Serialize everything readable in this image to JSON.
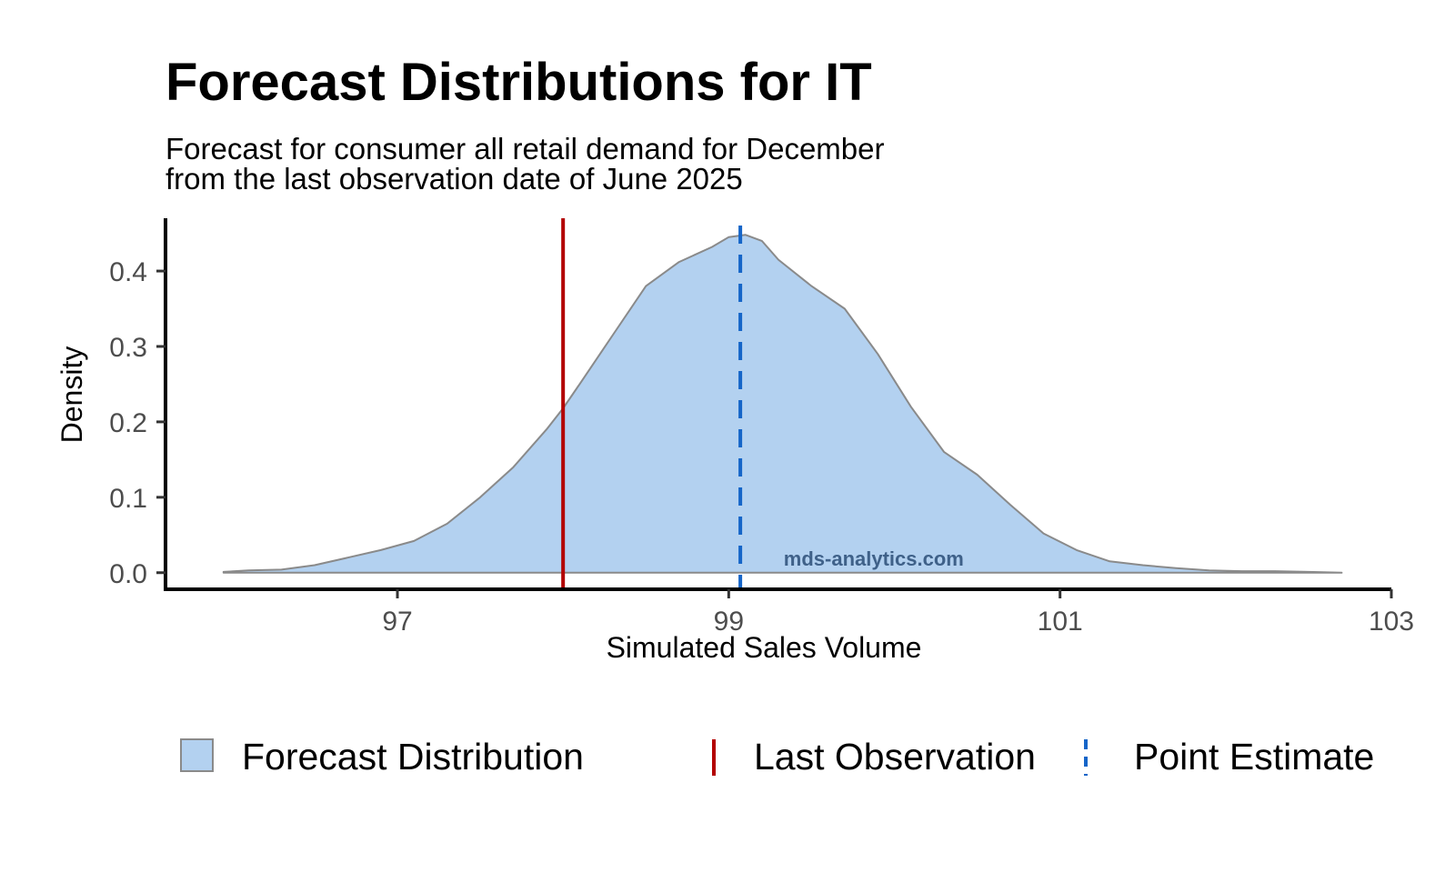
{
  "chart_data": {
    "type": "area",
    "title": "Forecast Distributions for IT",
    "subtitle": [
      "Forecast for consumer all retail demand for December",
      "from the last observation date of June 2025"
    ],
    "xlabel": "Simulated Sales Volume",
    "ylabel": "Density",
    "xlim": [
      95.6,
      103.0
    ],
    "ylim": [
      -0.022,
      0.47
    ],
    "x_ticks": [
      97,
      99,
      101,
      103
    ],
    "y_ticks": [
      0.0,
      0.1,
      0.2,
      0.3,
      0.4
    ],
    "x_tick_labels": [
      "97",
      "99",
      "101",
      "103"
    ],
    "y_tick_labels": [
      "0.0",
      "0.1",
      "0.2",
      "0.3",
      "0.4"
    ],
    "grid": false,
    "legend_position": "bottom",
    "series": [
      {
        "name": "Forecast Distribution",
        "kind": "density",
        "x": [
          95.95,
          96.1,
          96.3,
          96.5,
          96.7,
          96.9,
          97.1,
          97.3,
          97.5,
          97.7,
          97.9,
          98.0,
          98.1,
          98.3,
          98.5,
          98.7,
          98.9,
          99.0,
          99.1,
          99.2,
          99.3,
          99.5,
          99.7,
          99.9,
          100.1,
          100.3,
          100.5,
          100.7,
          100.9,
          101.1,
          101.3,
          101.5,
          101.7,
          101.9,
          102.1,
          102.3,
          102.5,
          102.7
        ],
        "y": [
          0.001,
          0.003,
          0.004,
          0.01,
          0.02,
          0.03,
          0.042,
          0.065,
          0.1,
          0.14,
          0.19,
          0.218,
          0.25,
          0.315,
          0.38,
          0.412,
          0.432,
          0.445,
          0.448,
          0.44,
          0.415,
          0.38,
          0.35,
          0.29,
          0.22,
          0.16,
          0.13,
          0.09,
          0.052,
          0.03,
          0.015,
          0.01,
          0.006,
          0.003,
          0.002,
          0.002,
          0.001,
          0.0
        ]
      },
      {
        "name": "Last Observation",
        "kind": "vline",
        "x": 98.0
      },
      {
        "name": "Point Estimate",
        "kind": "vline-dashed",
        "x": 99.07
      }
    ],
    "annotations": [
      {
        "text": "mds-analytics.com",
        "x": 99.2,
        "y": 0.02
      }
    ],
    "colors": {
      "fill": "#b3d1f0",
      "outline": "#8a8a8a",
      "last_observation": "#b30000",
      "point_estimate": "#1565c8",
      "tick_label": "#4d4d4d",
      "watermark": "#3f6189"
    }
  }
}
